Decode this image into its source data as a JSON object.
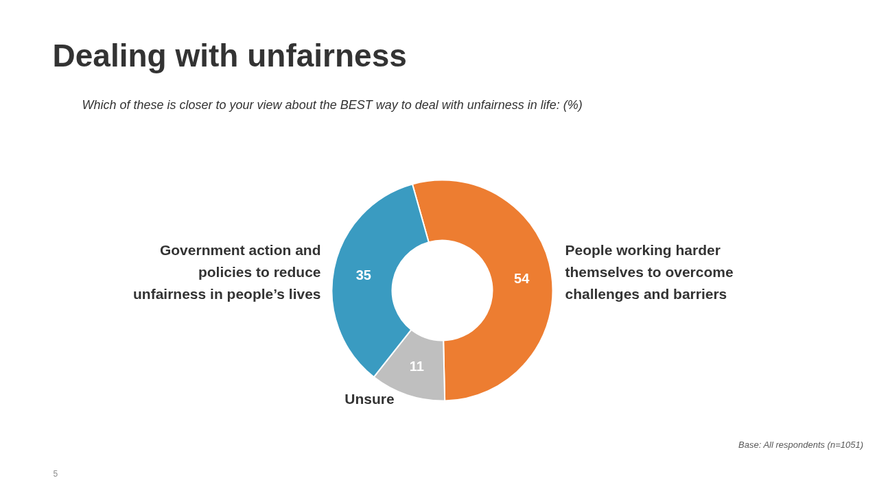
{
  "chart_data": {
    "type": "donut",
    "title": "Dealing with unfairness",
    "subtitle": "Which of these is closer to your view about the BEST way to deal with unfairness in life: (%)",
    "categories": [
      "People working harder themselves to overcome challenges and barriers",
      "Unsure",
      "Government action and policies to reduce unfairness in people’s lives"
    ],
    "values": [
      54,
      11,
      35
    ],
    "colors": [
      "#ed7d31",
      "#bfbfbf",
      "#3a9bc1"
    ],
    "data_labels": true,
    "annotations": [
      "Base: All respondents (n=1051)",
      "5"
    ]
  }
}
